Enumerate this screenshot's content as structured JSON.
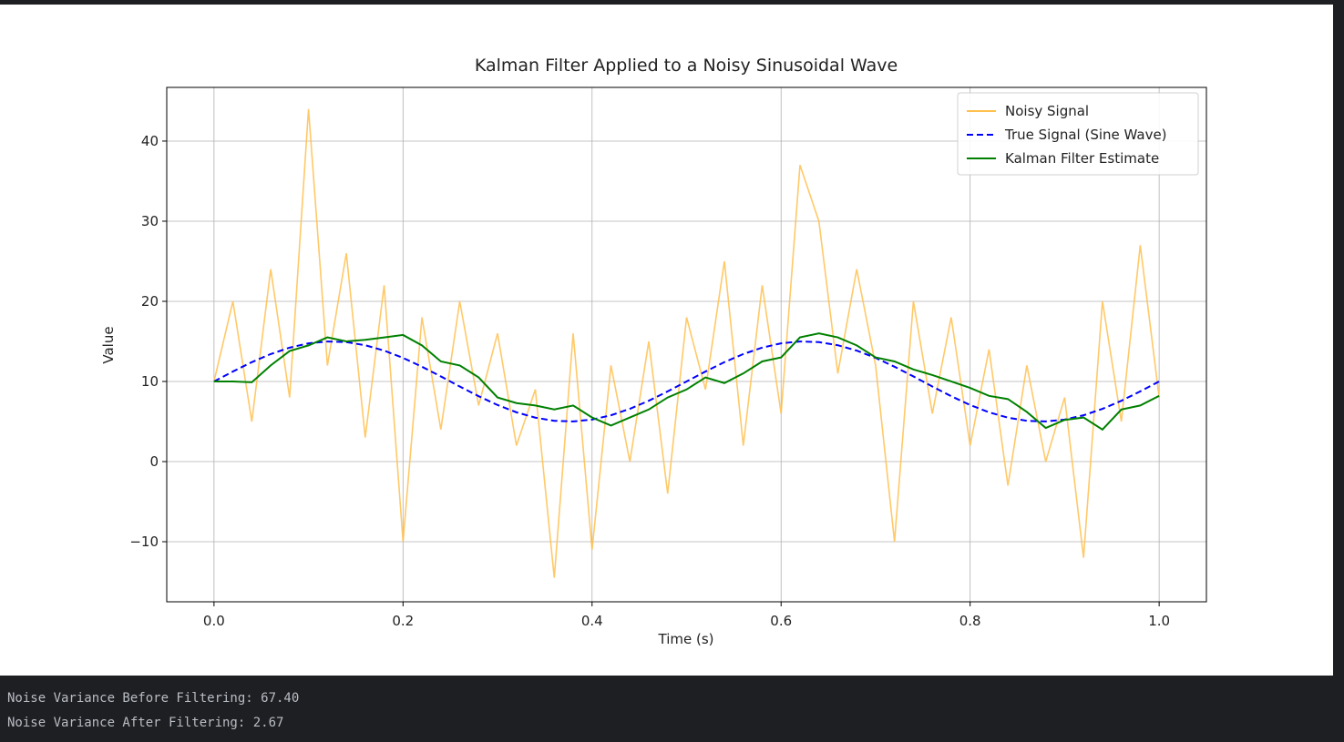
{
  "chart_data": {
    "type": "line",
    "title": "Kalman Filter Applied to a Noisy Sinusoidal Wave",
    "x_label": "Time (s)",
    "y_label": "Value",
    "x": [
      0,
      0.02,
      0.04,
      0.06,
      0.08,
      0.1,
      0.12,
      0.14,
      0.16,
      0.18,
      0.2,
      0.22,
      0.24,
      0.26,
      0.28,
      0.3,
      0.32,
      0.34,
      0.36,
      0.38,
      0.4,
      0.42,
      0.44,
      0.46,
      0.48,
      0.5,
      0.52,
      0.54,
      0.56,
      0.58,
      0.6,
      0.62,
      0.64,
      0.66,
      0.68,
      0.7,
      0.72,
      0.74,
      0.76,
      0.78,
      0.8,
      0.82,
      0.84,
      0.86,
      0.88,
      0.9,
      0.92,
      0.94,
      0.96,
      0.98,
      1.0
    ],
    "series": [
      {
        "name": "Noisy Signal",
        "color": "#ffc04d",
        "linestyle": "solid",
        "values": [
          10,
          20,
          5,
          24,
          8,
          44,
          12,
          26,
          3,
          22,
          -10,
          18,
          4,
          20,
          7,
          16,
          2,
          9,
          -14.5,
          16,
          -11,
          12,
          0,
          15,
          -4,
          18,
          9,
          25,
          2,
          22,
          6,
          37,
          30,
          11,
          24,
          12,
          -10,
          20,
          6,
          18,
          2,
          14,
          -3,
          12,
          0,
          8,
          -12,
          20,
          5,
          27,
          8
        ]
      },
      {
        "name": "True Signal (Sine Wave)",
        "color": "#0000ff",
        "linestyle": "dashed",
        "values": [
          10,
          11.24,
          12.41,
          13.42,
          14.22,
          14.76,
          14.99,
          14.91,
          14.52,
          13.85,
          12.94,
          11.84,
          10.63,
          9.37,
          8.16,
          7.06,
          6.15,
          5.48,
          5.09,
          5.01,
          5.24,
          5.78,
          6.58,
          7.59,
          8.76,
          10,
          11.24,
          12.41,
          13.42,
          14.22,
          14.76,
          14.99,
          14.91,
          14.52,
          13.85,
          12.94,
          11.84,
          10.63,
          9.37,
          8.16,
          7.06,
          6.15,
          5.48,
          5.09,
          5.01,
          5.24,
          5.78,
          6.58,
          7.59,
          8.76,
          10
        ]
      },
      {
        "name": "Kalman Filter Estimate",
        "color": "#008000",
        "linestyle": "solid",
        "values": [
          10,
          10,
          9.9,
          12,
          13.8,
          14.5,
          15.5,
          15,
          15.2,
          15.5,
          15.8,
          14.5,
          12.5,
          12,
          10.5,
          8,
          7.3,
          7,
          6.5,
          7,
          5.5,
          4.5,
          5.5,
          6.5,
          8,
          9,
          10.5,
          9.8,
          11,
          12.5,
          13,
          15.5,
          16,
          15.5,
          14.5,
          13,
          12.5,
          11.5,
          10.8,
          10,
          9.2,
          8.2,
          7.8,
          6.2,
          4.2,
          5.2,
          5.5,
          4,
          6.5,
          7,
          8.2
        ]
      }
    ],
    "xlim": [
      -0.05,
      1.05
    ],
    "ylim": [
      -17.5,
      46.7
    ],
    "xticks": [
      {
        "value": 0,
        "label": "0.0"
      },
      {
        "value": 0.2,
        "label": "0.2"
      },
      {
        "value": 0.4,
        "label": "0.4"
      },
      {
        "value": 0.6,
        "label": "0.6"
      },
      {
        "value": 0.8,
        "label": "0.8"
      },
      {
        "value": 1,
        "label": "1.0"
      }
    ],
    "yticks": [
      {
        "value": -10,
        "label": "−10"
      },
      0,
      10,
      20,
      30,
      40
    ],
    "grid": true,
    "legend": "upper right"
  },
  "console": {
    "lines": [
      "Noise Variance Before Filtering: 67.40",
      "Noise Variance After Filtering: 2.67"
    ]
  }
}
